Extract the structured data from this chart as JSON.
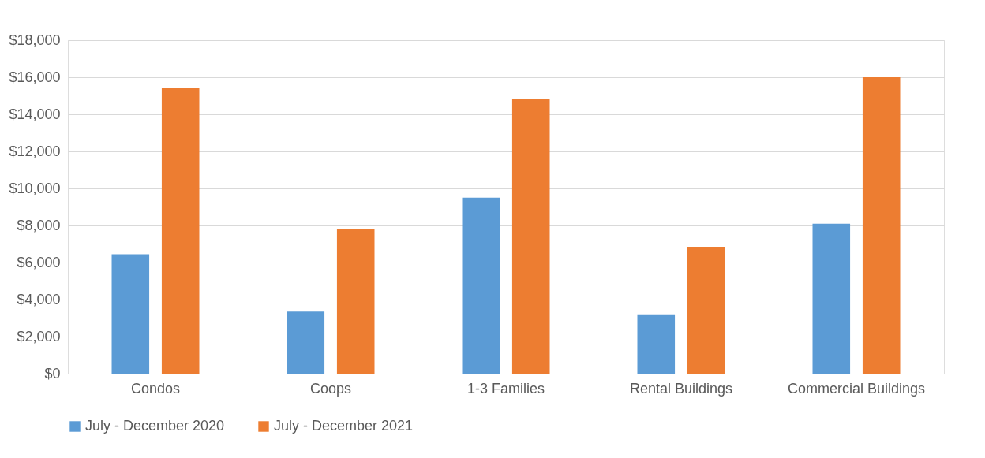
{
  "chart_data": {
    "type": "bar",
    "categories": [
      "Condos",
      "Coops",
      "1-3 Families",
      "Rental Buildings",
      "Commercial Buildings"
    ],
    "series": [
      {
        "name": "July - December 2020",
        "color": "#5b9bd5",
        "values": [
          6450,
          3350,
          9500,
          3200,
          8100
        ]
      },
      {
        "name": "July - December 2021",
        "color": "#ed7d31",
        "values": [
          15450,
          7800,
          14850,
          6850,
          16000
        ]
      }
    ],
    "ylim": [
      0,
      18000
    ],
    "yticks": [
      {
        "value": 0,
        "label": "$0"
      },
      {
        "value": 2000,
        "label": "$2,000"
      },
      {
        "value": 4000,
        "label": "$4,000"
      },
      {
        "value": 6000,
        "label": "$6,000"
      },
      {
        "value": 8000,
        "label": "$8,000"
      },
      {
        "value": 10000,
        "label": "$10,000"
      },
      {
        "value": 12000,
        "label": "$12,000"
      },
      {
        "value": 14000,
        "label": "$14,000"
      },
      {
        "value": 16000,
        "label": "$16,000"
      },
      {
        "value": 18000,
        "label": "$18,000"
      }
    ],
    "grid": "y",
    "legend": "bottom"
  }
}
